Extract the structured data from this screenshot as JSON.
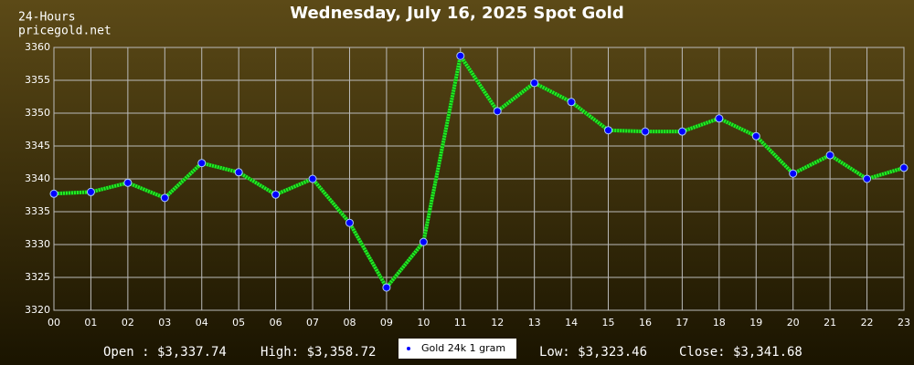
{
  "chart_data": {
    "type": "line",
    "title": "Wednesday, July 16, 2025 Spot Gold",
    "subtitle": "24-Hours",
    "source": "pricegold.net",
    "categories": [
      "00",
      "01",
      "02",
      "03",
      "04",
      "05",
      "06",
      "07",
      "08",
      "09",
      "10",
      "11",
      "12",
      "13",
      "14",
      "15",
      "16",
      "17",
      "18",
      "19",
      "20",
      "21",
      "22",
      "23"
    ],
    "series": [
      {
        "name": "Gold 24k 1 gram",
        "color": "#22ee22",
        "marker_color": "#0000ff",
        "values": [
          3337.74,
          3338.0,
          3339.4,
          3337.1,
          3342.4,
          3341.0,
          3337.6,
          3340.0,
          3333.3,
          3323.46,
          3330.4,
          3358.72,
          3350.3,
          3354.6,
          3351.7,
          3347.4,
          3347.2,
          3347.2,
          3349.2,
          3346.5,
          3340.8,
          3343.6,
          3340.0,
          3341.68
        ]
      }
    ],
    "ylim": [
      3320,
      3360
    ],
    "yticks": [
      3320,
      3325,
      3330,
      3335,
      3340,
      3345,
      3350,
      3355,
      3360
    ],
    "grid": true,
    "stats": {
      "open": "Open : $3,337.74",
      "high": "High: $3,358.72",
      "low": "Low: $3,323.46",
      "close": "Close: $3,341.68"
    }
  }
}
